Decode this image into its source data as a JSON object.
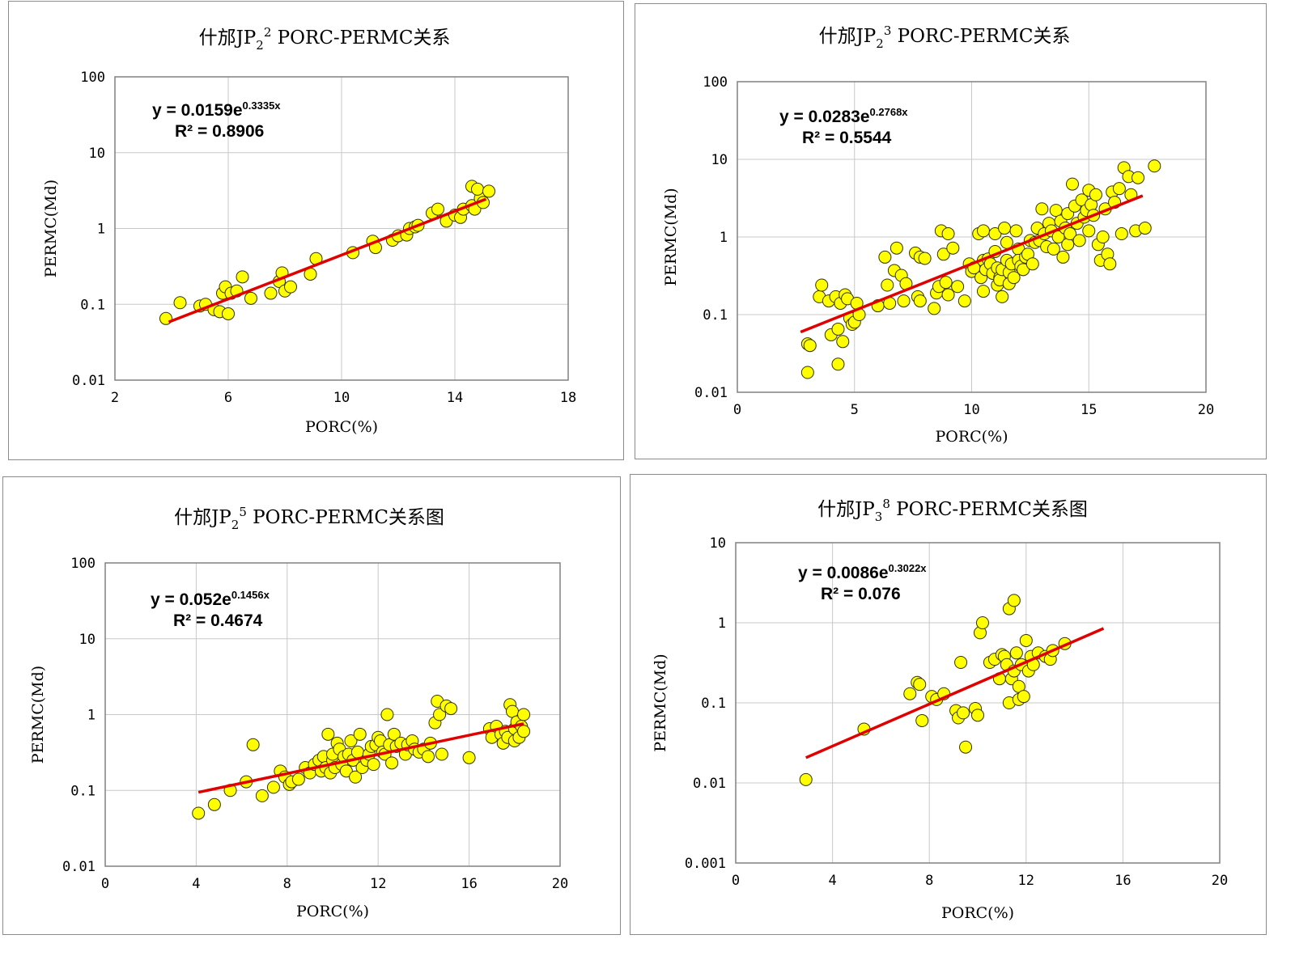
{
  "chart_data": [
    {
      "type": "scatter",
      "title": {
        "pre": "什邡JP",
        "sub": "2",
        "sup": "2",
        "post": " PORC-PERMC关系"
      },
      "xlabel": "PORC(%)",
      "ylabel": "PERMC(Md)",
      "x_ticks": [
        2,
        6,
        10,
        14,
        18
      ],
      "y_ticks": [
        0.01,
        0.1,
        1,
        10,
        100
      ],
      "y_tick_labels": [
        "0.01",
        "0.1",
        "1",
        "10",
        "100"
      ],
      "y_scale": "log",
      "xlim": [
        2,
        18
      ],
      "ylim": [
        0.01,
        100
      ],
      "grid": true,
      "legend": "none",
      "equation": {
        "main": "y = 0.0159e",
        "exp": "0.3335x",
        "r2": "R² = 0.8906",
        "a": 0.0159,
        "b": 0.3335
      },
      "trend_x": [
        3.9,
        15.1
      ],
      "points": [
        [
          3.8,
          0.065
        ],
        [
          4.3,
          0.105
        ],
        [
          5.0,
          0.095
        ],
        [
          5.2,
          0.1
        ],
        [
          5.5,
          0.085
        ],
        [
          5.7,
          0.08
        ],
        [
          5.8,
          0.14
        ],
        [
          5.9,
          0.17
        ],
        [
          6.0,
          0.075
        ],
        [
          6.1,
          0.14
        ],
        [
          6.3,
          0.15
        ],
        [
          6.5,
          0.23
        ],
        [
          6.8,
          0.12
        ],
        [
          7.5,
          0.14
        ],
        [
          7.8,
          0.2
        ],
        [
          7.9,
          0.26
        ],
        [
          8.0,
          0.15
        ],
        [
          8.2,
          0.17
        ],
        [
          8.9,
          0.25
        ],
        [
          9.1,
          0.4
        ],
        [
          10.4,
          0.48
        ],
        [
          11.1,
          0.68
        ],
        [
          11.2,
          0.56
        ],
        [
          11.8,
          0.7
        ],
        [
          12.0,
          0.8
        ],
        [
          12.3,
          0.82
        ],
        [
          12.4,
          1.0
        ],
        [
          12.6,
          1.05
        ],
        [
          12.7,
          1.1
        ],
        [
          13.2,
          1.6
        ],
        [
          13.4,
          1.8
        ],
        [
          13.7,
          1.25
        ],
        [
          14.0,
          1.5
        ],
        [
          14.2,
          1.4
        ],
        [
          14.3,
          1.8
        ],
        [
          14.6,
          2.0
        ],
        [
          14.7,
          1.8
        ],
        [
          14.9,
          2.5
        ],
        [
          15.0,
          2.2
        ],
        [
          14.6,
          3.6
        ],
        [
          14.8,
          3.3
        ],
        [
          15.2,
          3.1
        ]
      ]
    },
    {
      "type": "scatter",
      "title": {
        "pre": "什邡JP",
        "sub": "2",
        "sup": "3",
        "post": " PORC-PERMC关系"
      },
      "xlabel": "PORC(%)",
      "ylabel": "PERMC(Md)",
      "x_ticks": [
        0,
        5,
        10,
        15,
        20
      ],
      "y_ticks": [
        0.01,
        0.1,
        1,
        10,
        100
      ],
      "y_tick_labels": [
        "0.01",
        "0.1",
        "1",
        "10",
        "100"
      ],
      "y_scale": "log",
      "xlim": [
        0,
        20
      ],
      "ylim": [
        0.01,
        100
      ],
      "grid": true,
      "legend": "none",
      "equation": {
        "main": "y = 0.0283e",
        "exp": "0.2768x",
        "r2": "R² = 0.5544",
        "a": 0.0283,
        "b": 0.2768
      },
      "trend_x": [
        2.7,
        17.3
      ],
      "points": [
        [
          3.0,
          0.018
        ],
        [
          3.0,
          0.042
        ],
        [
          3.1,
          0.04
        ],
        [
          3.5,
          0.17
        ],
        [
          3.6,
          0.24
        ],
        [
          3.9,
          0.15
        ],
        [
          4.0,
          0.055
        ],
        [
          4.2,
          0.17
        ],
        [
          4.3,
          0.065
        ],
        [
          4.3,
          0.023
        ],
        [
          4.4,
          0.14
        ],
        [
          4.5,
          0.045
        ],
        [
          4.6,
          0.18
        ],
        [
          4.7,
          0.16
        ],
        [
          4.8,
          0.09
        ],
        [
          4.9,
          0.075
        ],
        [
          5.0,
          0.08
        ],
        [
          5.1,
          0.14
        ],
        [
          5.2,
          0.1
        ],
        [
          6.0,
          0.13
        ],
        [
          6.3,
          0.55
        ],
        [
          6.4,
          0.24
        ],
        [
          6.5,
          0.14
        ],
        [
          6.7,
          0.37
        ],
        [
          6.8,
          0.72
        ],
        [
          7.0,
          0.32
        ],
        [
          7.1,
          0.15
        ],
        [
          7.2,
          0.25
        ],
        [
          7.6,
          0.62
        ],
        [
          7.7,
          0.17
        ],
        [
          7.8,
          0.55
        ],
        [
          7.8,
          0.15
        ],
        [
          8.0,
          0.53
        ],
        [
          8.4,
          0.12
        ],
        [
          8.5,
          0.19
        ],
        [
          8.6,
          0.23
        ],
        [
          8.7,
          1.2
        ],
        [
          8.8,
          0.6
        ],
        [
          8.9,
          0.26
        ],
        [
          9.0,
          1.1
        ],
        [
          9.0,
          0.18
        ],
        [
          9.2,
          0.72
        ],
        [
          9.4,
          0.23
        ],
        [
          9.7,
          0.15
        ],
        [
          9.9,
          0.45
        ],
        [
          10.0,
          0.36
        ],
        [
          10.1,
          0.4
        ],
        [
          10.3,
          1.1
        ],
        [
          10.4,
          0.3
        ],
        [
          10.5,
          1.2
        ],
        [
          10.5,
          0.5
        ],
        [
          10.5,
          0.2
        ],
        [
          10.6,
          0.38
        ],
        [
          10.7,
          0.52
        ],
        [
          10.8,
          0.45
        ],
        [
          10.9,
          0.34
        ],
        [
          11.0,
          1.1
        ],
        [
          11.0,
          0.65
        ],
        [
          11.1,
          0.24
        ],
        [
          11.1,
          0.4
        ],
        [
          11.2,
          0.3
        ],
        [
          11.2,
          0.28
        ],
        [
          11.3,
          0.38
        ],
        [
          11.3,
          0.17
        ],
        [
          11.4,
          1.3
        ],
        [
          11.5,
          0.85
        ],
        [
          11.5,
          0.5
        ],
        [
          11.6,
          0.35
        ],
        [
          11.6,
          0.25
        ],
        [
          11.7,
          0.45
        ],
        [
          11.8,
          0.3
        ],
        [
          11.9,
          1.2
        ],
        [
          12.0,
          0.7
        ],
        [
          12.0,
          0.5
        ],
        [
          12.1,
          0.42
        ],
        [
          12.2,
          0.38
        ],
        [
          12.3,
          0.55
        ],
        [
          12.4,
          0.6
        ],
        [
          12.5,
          0.9
        ],
        [
          12.6,
          0.45
        ],
        [
          12.7,
          0.85
        ],
        [
          12.8,
          1.3
        ],
        [
          12.9,
          0.9
        ],
        [
          13.0,
          2.3
        ],
        [
          13.1,
          1.1
        ],
        [
          13.2,
          0.75
        ],
        [
          13.3,
          1.5
        ],
        [
          13.4,
          1.2
        ],
        [
          13.5,
          0.7
        ],
        [
          13.6,
          2.2
        ],
        [
          13.7,
          1.0
        ],
        [
          13.8,
          1.6
        ],
        [
          13.9,
          0.55
        ],
        [
          14.0,
          1.3
        ],
        [
          14.1,
          2.0
        ],
        [
          14.1,
          0.8
        ],
        [
          14.2,
          1.1
        ],
        [
          14.3,
          4.8
        ],
        [
          14.4,
          2.5
        ],
        [
          14.5,
          1.5
        ],
        [
          14.6,
          0.9
        ],
        [
          14.7,
          3.0
        ],
        [
          14.8,
          1.8
        ],
        [
          14.9,
          2.2
        ],
        [
          15.0,
          4.0
        ],
        [
          15.0,
          1.2
        ],
        [
          15.1,
          2.6
        ],
        [
          15.2,
          1.9
        ],
        [
          15.3,
          3.5
        ],
        [
          15.4,
          0.8
        ],
        [
          15.5,
          0.5
        ],
        [
          15.6,
          1.0
        ],
        [
          15.7,
          2.3
        ],
        [
          15.8,
          0.6
        ],
        [
          15.9,
          0.45
        ],
        [
          16.0,
          3.8
        ],
        [
          16.1,
          2.8
        ],
        [
          16.3,
          4.2
        ],
        [
          16.4,
          1.1
        ],
        [
          16.5,
          7.8
        ],
        [
          16.7,
          6.0
        ],
        [
          16.8,
          3.5
        ],
        [
          17.0,
          1.2
        ],
        [
          17.1,
          5.8
        ],
        [
          17.4,
          1.3
        ],
        [
          17.8,
          8.2
        ]
      ]
    },
    {
      "type": "scatter",
      "title": {
        "pre": "什邡JP",
        "sub": "2",
        "sup": "5",
        "post": " PORC-PERMC关系图"
      },
      "xlabel": "PORC(%)",
      "ylabel": "PERMC(Md)",
      "x_ticks": [
        0,
        4,
        8,
        12,
        16,
        20
      ],
      "y_ticks": [
        0.01,
        0.1,
        1,
        10,
        100
      ],
      "y_tick_labels": [
        "0.01",
        "0.1",
        "1",
        "10",
        "100"
      ],
      "y_scale": "log",
      "xlim": [
        0,
        20
      ],
      "ylim": [
        0.01,
        100
      ],
      "grid": true,
      "legend": "none",
      "equation": {
        "main": "y = 0.052e",
        "exp": "0.1456x",
        "r2": "R² = 0.4674",
        "a": 0.052,
        "b": 0.1456
      },
      "trend_x": [
        4.1,
        18.4
      ],
      "points": [
        [
          4.1,
          0.05
        ],
        [
          4.8,
          0.065
        ],
        [
          5.5,
          0.1
        ],
        [
          6.2,
          0.13
        ],
        [
          6.5,
          0.4
        ],
        [
          6.9,
          0.085
        ],
        [
          7.4,
          0.11
        ],
        [
          7.7,
          0.18
        ],
        [
          7.9,
          0.15
        ],
        [
          8.1,
          0.12
        ],
        [
          8.2,
          0.13
        ],
        [
          8.5,
          0.14
        ],
        [
          8.8,
          0.2
        ],
        [
          9.0,
          0.17
        ],
        [
          9.2,
          0.22
        ],
        [
          9.4,
          0.25
        ],
        [
          9.5,
          0.18
        ],
        [
          9.6,
          0.28
        ],
        [
          9.7,
          0.2
        ],
        [
          9.8,
          0.55
        ],
        [
          9.9,
          0.17
        ],
        [
          10.0,
          0.25
        ],
        [
          10.0,
          0.3
        ],
        [
          10.1,
          0.2
        ],
        [
          10.2,
          0.42
        ],
        [
          10.3,
          0.35
        ],
        [
          10.4,
          0.22
        ],
        [
          10.5,
          0.28
        ],
        [
          10.6,
          0.18
        ],
        [
          10.7,
          0.3
        ],
        [
          10.8,
          0.45
        ],
        [
          10.9,
          0.25
        ],
        [
          11.0,
          0.15
        ],
        [
          11.1,
          0.32
        ],
        [
          11.2,
          0.55
        ],
        [
          11.3,
          0.2
        ],
        [
          11.5,
          0.25
        ],
        [
          11.6,
          0.3
        ],
        [
          11.7,
          0.38
        ],
        [
          11.8,
          0.22
        ],
        [
          11.9,
          0.4
        ],
        [
          12.0,
          0.5
        ],
        [
          12.1,
          0.45
        ],
        [
          12.2,
          0.32
        ],
        [
          12.3,
          0.3
        ],
        [
          12.4,
          1.0
        ],
        [
          12.5,
          0.4
        ],
        [
          12.6,
          0.23
        ],
        [
          12.7,
          0.55
        ],
        [
          12.8,
          0.38
        ],
        [
          13.0,
          0.42
        ],
        [
          13.2,
          0.3
        ],
        [
          13.3,
          0.4
        ],
        [
          13.5,
          0.45
        ],
        [
          13.6,
          0.35
        ],
        [
          13.8,
          0.32
        ],
        [
          14.0,
          0.35
        ],
        [
          14.2,
          0.28
        ],
        [
          14.3,
          0.42
        ],
        [
          14.5,
          0.78
        ],
        [
          14.6,
          1.5
        ],
        [
          14.7,
          1.0
        ],
        [
          14.8,
          0.3
        ],
        [
          15.0,
          1.3
        ],
        [
          15.2,
          1.2
        ],
        [
          16.0,
          0.27
        ],
        [
          16.9,
          0.65
        ],
        [
          17.0,
          0.5
        ],
        [
          17.2,
          0.7
        ],
        [
          17.4,
          0.55
        ],
        [
          17.5,
          0.42
        ],
        [
          17.6,
          0.6
        ],
        [
          17.7,
          0.5
        ],
        [
          17.8,
          1.35
        ],
        [
          17.9,
          1.1
        ],
        [
          18.0,
          0.45
        ],
        [
          18.0,
          0.65
        ],
        [
          18.1,
          0.8
        ],
        [
          18.2,
          0.5
        ],
        [
          18.3,
          0.7
        ],
        [
          18.4,
          0.6
        ],
        [
          18.4,
          1.0
        ]
      ]
    },
    {
      "type": "scatter",
      "title": {
        "pre": "什邡JP",
        "sub": "3",
        "sup": "8",
        "post": " PORC-PERMC关系图"
      },
      "xlabel": "PORC(%)",
      "ylabel": "PERMC(Md)",
      "x_ticks": [
        0,
        4,
        8,
        12,
        16,
        20
      ],
      "y_ticks": [
        0.001,
        0.01,
        0.1,
        1,
        10
      ],
      "y_tick_labels": [
        "0.001",
        "0.01",
        "0.1",
        "1",
        "10"
      ],
      "y_scale": "log",
      "xlim": [
        0,
        20
      ],
      "ylim": [
        0.001,
        10
      ],
      "grid": true,
      "legend": "none",
      "equation": {
        "main": "y = 0.0086e",
        "exp": "0.3022x",
        "r2": "R² = 0.076",
        "a": 0.0086,
        "b": 0.3022
      },
      "trend_x": [
        2.9,
        15.2
      ],
      "points": [
        [
          2.9,
          0.011
        ],
        [
          5.3,
          0.047
        ],
        [
          7.2,
          0.13
        ],
        [
          7.5,
          0.18
        ],
        [
          7.6,
          0.17
        ],
        [
          7.7,
          0.06
        ],
        [
          8.1,
          0.12
        ],
        [
          8.3,
          0.11
        ],
        [
          8.6,
          0.13
        ],
        [
          9.1,
          0.08
        ],
        [
          9.2,
          0.065
        ],
        [
          9.3,
          0.32
        ],
        [
          9.4,
          0.075
        ],
        [
          9.5,
          0.028
        ],
        [
          9.9,
          0.085
        ],
        [
          10.0,
          0.07
        ],
        [
          10.1,
          0.75
        ],
        [
          10.2,
          1.0
        ],
        [
          10.5,
          0.32
        ],
        [
          10.7,
          0.35
        ],
        [
          10.9,
          0.2
        ],
        [
          11.0,
          0.4
        ],
        [
          11.1,
          0.38
        ],
        [
          11.2,
          0.3
        ],
        [
          11.3,
          0.1
        ],
        [
          11.3,
          1.5
        ],
        [
          11.4,
          0.2
        ],
        [
          11.5,
          1.9
        ],
        [
          11.5,
          0.25
        ],
        [
          11.6,
          0.42
        ],
        [
          11.7,
          0.11
        ],
        [
          11.7,
          0.16
        ],
        [
          11.8,
          0.3
        ],
        [
          11.9,
          0.12
        ],
        [
          12.0,
          0.6
        ],
        [
          12.1,
          0.25
        ],
        [
          12.2,
          0.38
        ],
        [
          12.3,
          0.3
        ],
        [
          12.5,
          0.42
        ],
        [
          12.8,
          0.38
        ],
        [
          13.0,
          0.35
        ],
        [
          13.1,
          0.45
        ],
        [
          13.6,
          0.55
        ]
      ]
    }
  ]
}
